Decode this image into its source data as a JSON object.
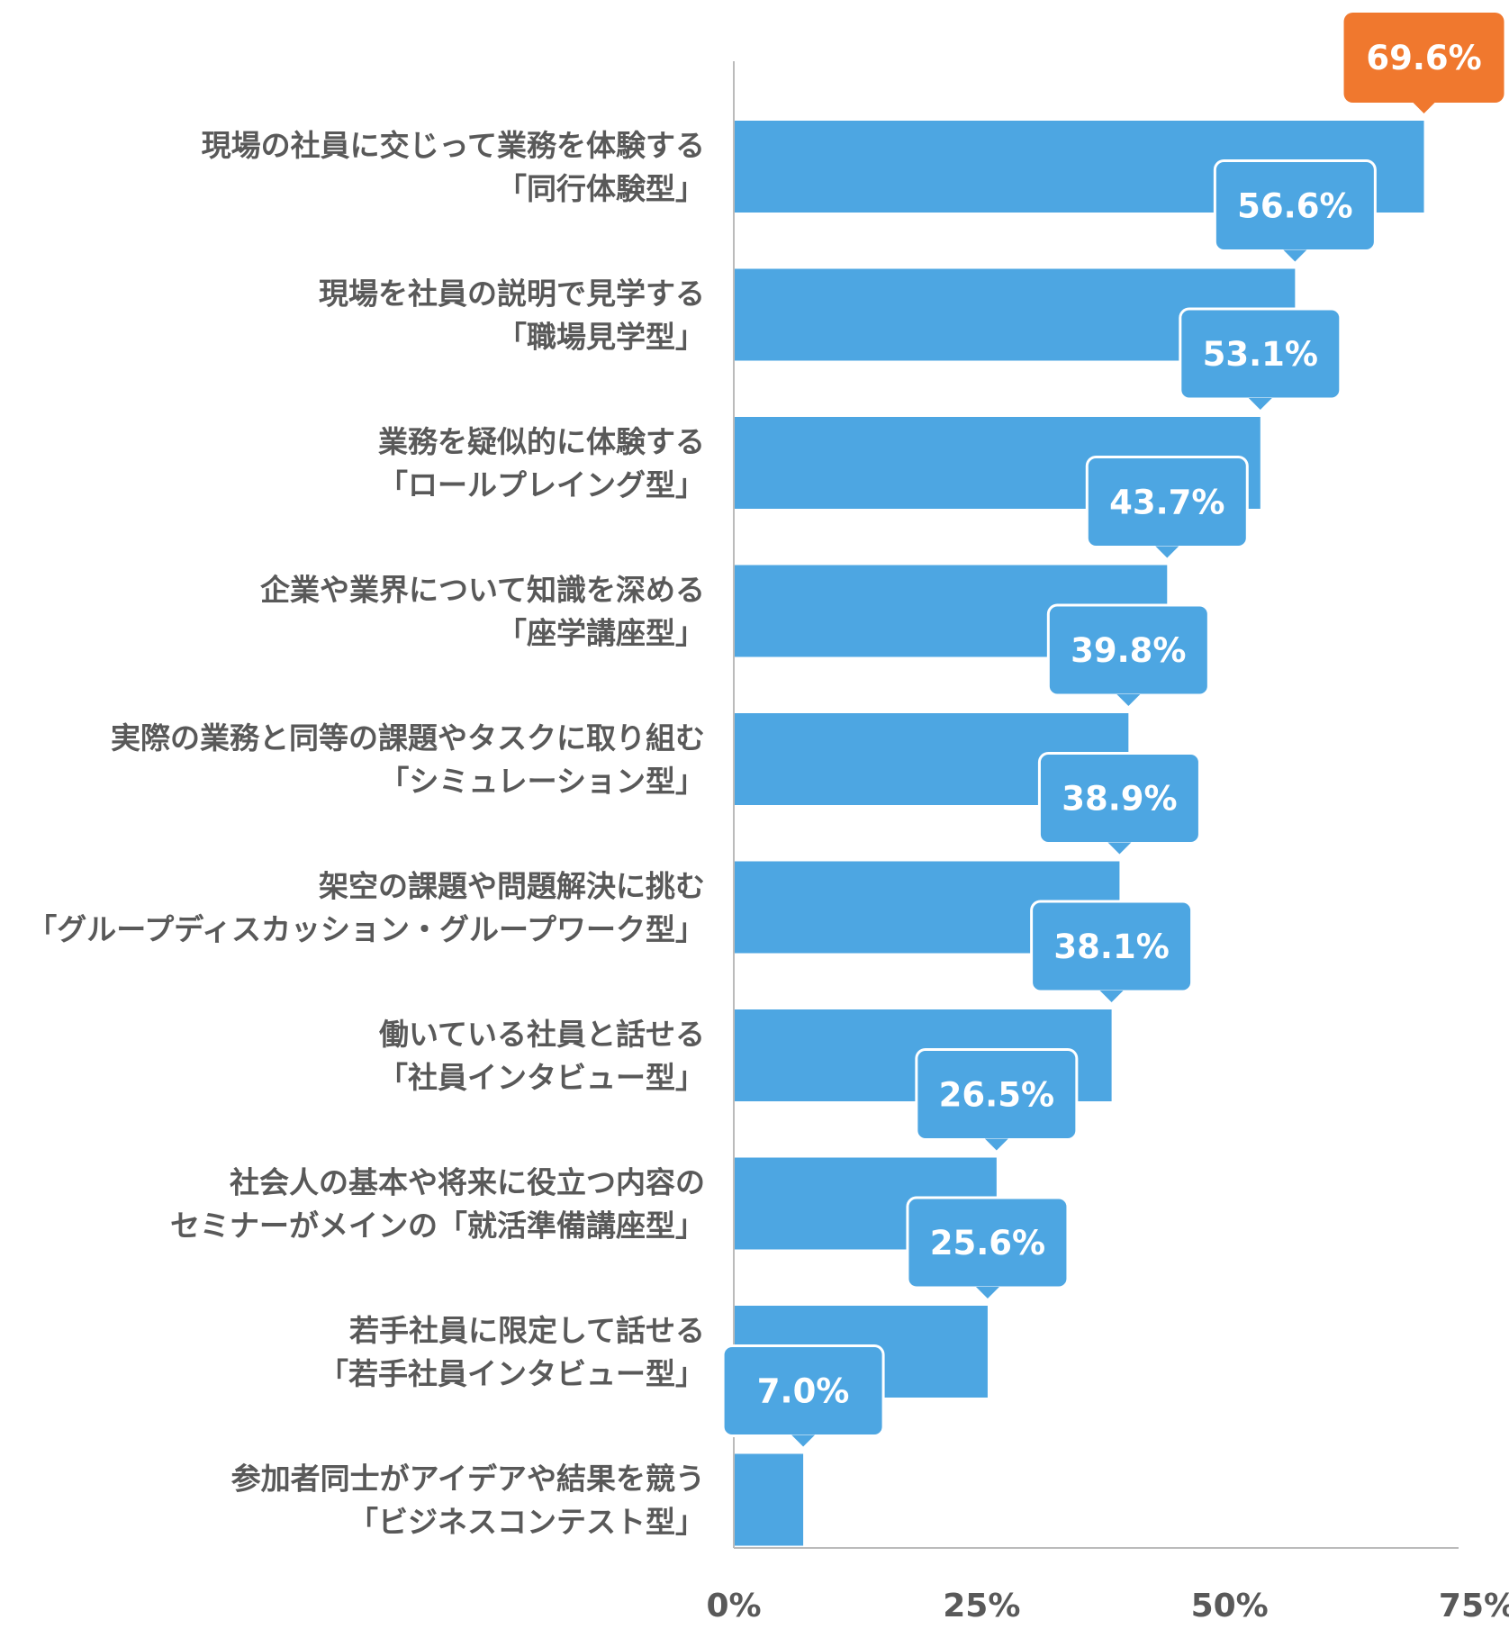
{
  "chart_data": {
    "type": "bar",
    "orientation": "horizontal",
    "categories": [
      [
        "現場の社員に交じって業務を体験する",
        "「同行体験型」"
      ],
      [
        "現場を社員の説明で見学する",
        "「職場見学型」"
      ],
      [
        "業務を疑似的に体験する",
        "「ロールプレイング型」"
      ],
      [
        "企業や業界について知識を深める",
        "「座学講座型」"
      ],
      [
        "実際の業務と同等の課題やタスクに取り組む",
        "「シミュレーション型」"
      ],
      [
        "架空の課題や問題解決に挑む",
        "「グループディスカッション・グループワーク型」"
      ],
      [
        "働いている社員と話せる",
        "「社員インタビュー型」"
      ],
      [
        "社会人の基本や将来に役立つ内容の",
        "セミナーがメインの「就活準備講座型」"
      ],
      [
        "若手社員に限定して話せる",
        "「若手社員インタビュー型」"
      ],
      [
        "参加者同士がアイデアや結果を競う",
        "「ビジネスコンテスト型」"
      ]
    ],
    "values": [
      69.6,
      56.6,
      53.1,
      43.7,
      39.8,
      38.9,
      38.1,
      26.5,
      25.6,
      7.0
    ],
    "value_labels": [
      "69.6%",
      "56.6%",
      "53.1%",
      "43.7%",
      "39.8%",
      "38.9%",
      "38.1%",
      "26.5%",
      "25.6%",
      "7.0%"
    ],
    "x_ticks": [
      0,
      25,
      50,
      75
    ],
    "x_tick_labels": [
      "0%",
      "25%",
      "50%",
      "75%"
    ],
    "xlim": [
      0,
      75
    ],
    "grid": false,
    "colors": {
      "bar": "#4da6e2",
      "highlight_callout": "#f0782e",
      "callout": "#4da6e2",
      "callout_border": "#ffffff",
      "label_text": "#595959",
      "axis": "#bbbbbb"
    },
    "highlight_index": 0
  }
}
